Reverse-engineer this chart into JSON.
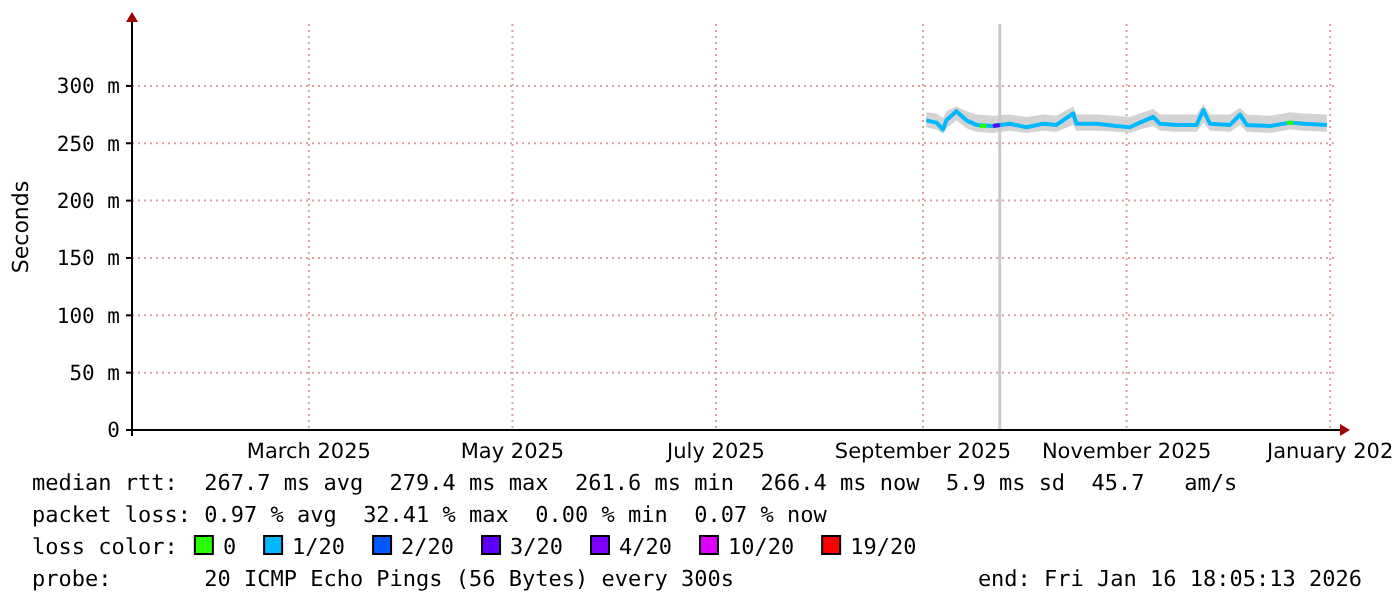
{
  "chart_data": {
    "type": "line",
    "ylabel": "Seconds",
    "legend_title": "loss color:",
    "legend": "bottom",
    "grid": true,
    "marker": "none",
    "line_style": "solid",
    "xlim": [
      "2025-01-21",
      "2026-01-16T18:05"
    ],
    "xticks": [
      {
        "value": "2025-03-15",
        "label": "March 2025"
      },
      {
        "value": "2025-05-15",
        "label": "May 2025"
      },
      {
        "value": "2025-07-15",
        "label": "July 2025"
      },
      {
        "value": "2025-09-15",
        "label": "September 2025"
      },
      {
        "value": "2025-11-15",
        "label": "November 2025"
      },
      {
        "value": "2026-01-15",
        "label": "January 202"
      }
    ],
    "ylim": [
      0,
      354
    ],
    "yticks": [
      0,
      {
        "value": 50,
        "label": "50 m"
      },
      {
        "value": 100,
        "label": "100 m"
      },
      {
        "value": 150,
        "label": "150 m"
      },
      {
        "value": 200,
        "label": "200 m"
      },
      {
        "value": 250,
        "label": "250 m"
      },
      {
        "value": 300,
        "label": "300 m"
      }
    ],
    "ref_lines": [
      {
        "axis": "x",
        "value": "2025-10-08",
        "color": "#c8c8c8"
      }
    ],
    "series": [
      {
        "name": "0",
        "color": "#26ff00",
        "x": [
          "2025-10-02",
          "2025-10-04",
          "2025-11-15",
          "2026-01-02",
          "2026-01-04"
        ],
        "values": [
          265,
          265,
          null,
          268,
          268
        ]
      },
      {
        "name": "1/20",
        "color": "#00b8ff",
        "x": [
          "2025-09-16",
          "2025-09-19",
          "2025-09-21",
          "2025-09-22",
          "2025-09-25",
          "2025-09-28",
          "2025-10-01",
          "2025-10-06",
          "2025-10-11",
          "2025-10-16",
          "2025-10-21",
          "2025-10-25",
          "2025-10-30",
          "2025-10-31",
          "2025-11-06",
          "2025-11-12",
          "2025-11-16",
          "2025-11-19",
          "2025-11-23",
          "2025-11-25",
          "2025-11-30",
          "2025-12-06",
          "2025-12-08",
          "2025-12-10",
          "2025-12-16",
          "2025-12-19",
          "2025-12-21",
          "2025-12-28",
          "2026-01-03",
          "2026-01-07",
          "2026-01-14"
        ],
        "values": [
          270,
          268,
          262,
          270,
          278,
          270,
          266,
          265,
          267,
          264,
          267,
          266,
          276,
          267,
          267,
          265,
          264,
          268,
          273,
          267,
          266,
          266,
          279,
          267,
          266,
          275,
          266,
          265,
          268,
          267,
          266
        ],
        "lower": [
          264,
          262,
          258,
          263,
          270,
          263,
          260,
          259,
          261,
          259,
          261,
          260,
          266,
          261,
          261,
          260,
          259,
          262,
          265,
          261,
          260,
          260,
          268,
          261,
          260,
          266,
          260,
          259,
          262,
          261,
          260
        ],
        "upper": [
          277,
          276,
          272,
          278,
          282,
          278,
          275,
          274,
          275,
          273,
          275,
          274,
          282,
          275,
          275,
          274,
          273,
          276,
          280,
          275,
          275,
          275,
          284,
          275,
          275,
          281,
          275,
          274,
          277,
          276,
          275
        ]
      },
      {
        "name": "2/20",
        "color": "#0059ff"
      },
      {
        "name": "3/20",
        "color": "#5e00ff",
        "x": [
          "2025-10-06",
          "2025-10-08"
        ],
        "values": [
          265,
          266
        ]
      },
      {
        "name": "4/20",
        "color": "#7e00ff"
      },
      {
        "name": "10/20",
        "color": "#dd00ff"
      },
      {
        "name": "19/20",
        "color": "#ff0000"
      }
    ],
    "annotations": [
      "median rtt:  267.7 ms avg  279.4 ms max  261.6 ms min  266.4 ms now  5.9 ms sd  45.7   am/s",
      "packet loss: 0.97 % avg  32.41 % max  0.00 % min  0.07 % now",
      "probe:       20 ICMP Echo Pings (56 Bytes) every 300s",
      "end: Fri Jan 16 18:05:13 2026"
    ]
  }
}
